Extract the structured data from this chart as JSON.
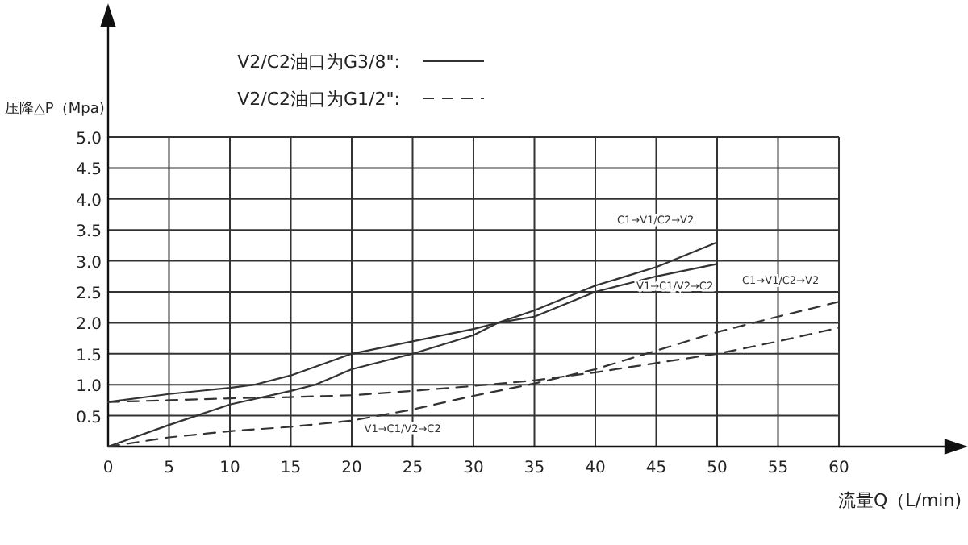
{
  "chart_data": {
    "type": "line",
    "xlabel": "流量Q（L/min)",
    "ylabel": "压降△P（Mpa)",
    "xlim": [
      0,
      60
    ],
    "xticks": [
      0,
      5,
      10,
      15,
      20,
      25,
      30,
      35,
      40,
      45,
      50,
      55,
      60
    ],
    "ylim": [
      0,
      5
    ],
    "yticks": [
      {
        "value": 0.5,
        "label": "0.5"
      },
      {
        "value": 1,
        "label": "1.0"
      },
      {
        "value": 1.5,
        "label": "1.5"
      },
      {
        "value": 2,
        "label": "2.0"
      },
      {
        "value": 2.5,
        "label": "2.5"
      },
      {
        "value": 3,
        "label": "3.0"
      },
      {
        "value": 3.5,
        "label": "3.5"
      },
      {
        "value": 4,
        "label": "4.0"
      },
      {
        "value": 4.5,
        "label": "4.5"
      },
      {
        "value": 5,
        "label": "5.0"
      }
    ],
    "grid": true,
    "legend": "top",
    "marker": "none",
    "series": [
      {
        "name": "V2/C2油口为G3/8\":",
        "color": "#333333",
        "line_style": "solid",
        "x": [
          0,
          5,
          10,
          12,
          15,
          20,
          25,
          30,
          32,
          35,
          40,
          45,
          50
        ],
        "values": [
          0.72,
          0.85,
          0.95,
          1.0,
          1.15,
          1.5,
          1.7,
          1.9,
          2.0,
          2.2,
          2.6,
          2.9,
          3.3
        ]
      },
      {
        "color": "#333333",
        "line_style": "solid",
        "x": [
          0,
          5,
          10,
          15,
          17,
          20,
          25,
          30,
          32,
          35,
          40,
          45,
          50
        ],
        "values": [
          0,
          0.35,
          0.68,
          0.9,
          1.0,
          1.25,
          1.5,
          1.8,
          2.0,
          2.1,
          2.5,
          2.75,
          2.95
        ]
      },
      {
        "name": "V2/C2油口为G1/2\":",
        "color": "#333333",
        "line_style": "dashed",
        "x": [
          0,
          5,
          10,
          15,
          20,
          25,
          30,
          35,
          40,
          45,
          50,
          55,
          60
        ],
        "values": [
          0,
          0.15,
          0.25,
          0.32,
          0.42,
          0.6,
          0.82,
          1.02,
          1.25,
          1.55,
          1.85,
          2.1,
          2.34
        ]
      },
      {
        "color": "#333333",
        "line_style": "dashed",
        "x": [
          0,
          5,
          10,
          15,
          20,
          25,
          30,
          35,
          40,
          45,
          50,
          55,
          60
        ],
        "values": [
          0.72,
          0.75,
          0.78,
          0.8,
          0.83,
          0.9,
          0.98,
          1.07,
          1.2,
          1.35,
          1.5,
          1.7,
          1.92
        ]
      }
    ],
    "annotations": [
      "C1→V1/C2→V2",
      "V1→C1/V2→C2",
      "C1→V1/C2→V2",
      "V1→C1/V2→C2"
    ]
  }
}
